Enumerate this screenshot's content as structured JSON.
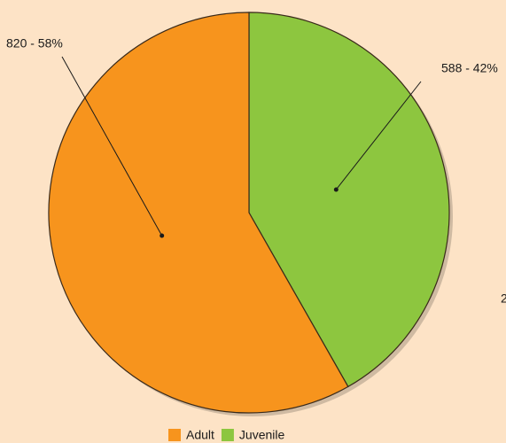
{
  "chart_data": {
    "type": "pie",
    "categories": [
      "Adult",
      "Juvenile"
    ],
    "values": [
      820,
      588
    ],
    "value_labels": [
      "820 - 58%",
      "588 - 42%"
    ],
    "colors": [
      "#f7941d",
      "#8dc63f"
    ],
    "annotation": "2",
    "legend": "bottom"
  }
}
